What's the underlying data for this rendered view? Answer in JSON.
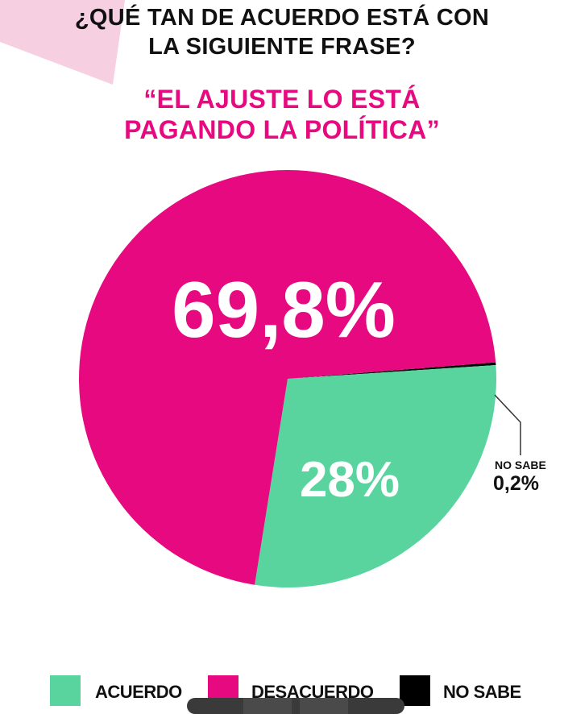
{
  "header": {
    "question_line1": "¿QUÉ TAN DE ACUERDO ESTÁ CON",
    "question_line2": "LA SIGUIENTE FRASE?",
    "phrase_line1": "“EL AJUSTE LO ESTÁ",
    "phrase_line2": "PAGANDO LA POLÍTICA”"
  },
  "colors": {
    "accent": "#e6097f",
    "corner": "#f6cfe1",
    "acuerdo": "#59d49e",
    "desacuerdo": "#e6097f",
    "no_sabe": "#000000",
    "text": "#111111"
  },
  "chart_data": {
    "type": "pie",
    "title": "¿QUÉ TAN DE ACUERDO ESTÁ CON LA SIGUIENTE FRASE?",
    "subtitle": "“EL AJUSTE LO ESTÁ PAGANDO LA POLÍTICA”",
    "slices": [
      {
        "name": "DESACUERDO",
        "value": 69.8,
        "label": "69,8%",
        "color": "#e6097f"
      },
      {
        "name": "ACUERDO",
        "value": 28,
        "label": "28%",
        "color": "#59d49e"
      },
      {
        "name": "NO SABE",
        "value": 0.2,
        "label": "0,2%",
        "color": "#000000"
      }
    ],
    "callout": {
      "title": "NO SABE",
      "value": "0,2%"
    },
    "legend": [
      "ACUERDO",
      "DESACUERDO",
      "NO SABE"
    ],
    "legend_position": "bottom"
  }
}
